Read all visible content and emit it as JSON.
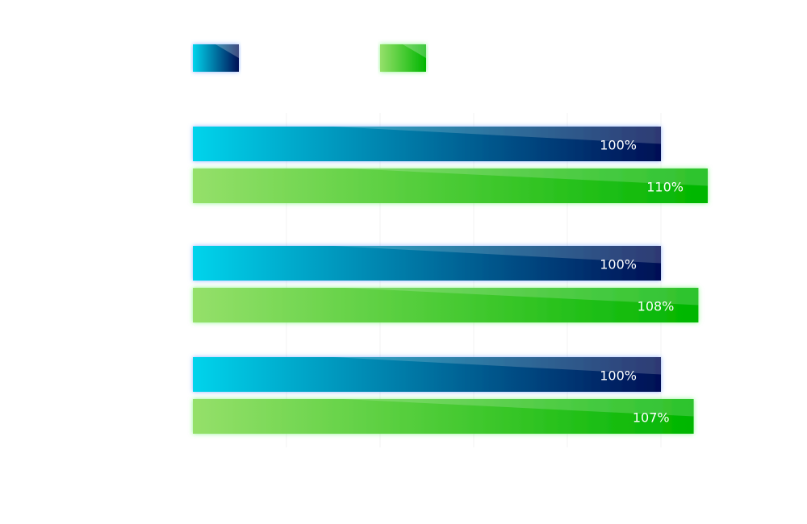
{
  "chart_data": {
    "type": "bar",
    "orientation": "horizontal",
    "categories": [
      "",
      "",
      ""
    ],
    "series": [
      {
        "values": [
          100,
          100,
          100
        ],
        "labels": [
          "100%",
          "100%",
          "100%"
        ],
        "color_start": "#00d4ec",
        "color_end": "#000f55",
        "glow": "#3b7bff"
      },
      {
        "values": [
          110,
          108,
          107
        ],
        "labels": [
          "110%",
          "108%",
          "107%"
        ],
        "color_start": "#95e06a",
        "color_end": "#00b600",
        "glow": "#33ee33"
      }
    ],
    "xlim": [
      0,
      110
    ],
    "grid": true,
    "legend_position": "top-left",
    "title": "",
    "xlabel": "",
    "ylabel": ""
  }
}
